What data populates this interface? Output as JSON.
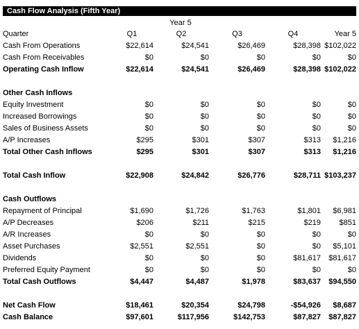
{
  "title": "Cash Flow Analysis (Fifth Year)",
  "group_header": "Year 5",
  "columns": [
    "Quarter",
    "Q1",
    "Q2",
    "Q3",
    "Q4",
    "Year 5"
  ],
  "rows": [
    {
      "label": "Cash From Operations",
      "values": [
        "$22,614",
        "$24,541",
        "$26,469",
        "$28,398",
        "$102,022"
      ],
      "bold": false
    },
    {
      "label": "Cash From Receivables",
      "values": [
        "$0",
        "$0",
        "$0",
        "$0",
        "$0"
      ],
      "bold": false
    },
    {
      "label": "Operating Cash Inflow",
      "values": [
        "$22,614",
        "$24,541",
        "$26,469",
        "$28,398",
        "$102,022"
      ],
      "bold": true
    },
    {
      "blank": true
    },
    {
      "label": "Other Cash Inflows",
      "values": [
        "",
        "",
        "",
        "",
        ""
      ],
      "bold": true
    },
    {
      "label": "Equity Investment",
      "values": [
        "$0",
        "$0",
        "$0",
        "$0",
        "$0"
      ],
      "bold": false
    },
    {
      "label": "Increased Borrowings",
      "values": [
        "$0",
        "$0",
        "$0",
        "$0",
        "$0"
      ],
      "bold": false
    },
    {
      "label": "Sales of Business Assets",
      "values": [
        "$0",
        "$0",
        "$0",
        "$0",
        "$0"
      ],
      "bold": false
    },
    {
      "label": "A/P Increases",
      "values": [
        "$295",
        "$301",
        "$307",
        "$313",
        "$1,216"
      ],
      "bold": false
    },
    {
      "label": "Total Other Cash Inflows",
      "values": [
        "$295",
        "$301",
        "$307",
        "$313",
        "$1,216"
      ],
      "bold": true
    },
    {
      "blank": true
    },
    {
      "label": "Total Cash Inflow",
      "values": [
        "$22,908",
        "$24,842",
        "$26,776",
        "$28,711",
        "$103,237"
      ],
      "bold": true
    },
    {
      "blank": true
    },
    {
      "label": "Cash Outflows",
      "values": [
        "",
        "",
        "",
        "",
        ""
      ],
      "bold": true
    },
    {
      "label": "Repayment of Principal",
      "values": [
        "$1,690",
        "$1,726",
        "$1,763",
        "$1,801",
        "$6,981"
      ],
      "bold": false
    },
    {
      "label": "A/P Decreases",
      "values": [
        "$206",
        "$211",
        "$215",
        "$219",
        "$851"
      ],
      "bold": false
    },
    {
      "label": "A/R Increases",
      "values": [
        "$0",
        "$0",
        "$0",
        "$0",
        "$0"
      ],
      "bold": false
    },
    {
      "label": "Asset Purchases",
      "values": [
        "$2,551",
        "$2,551",
        "$0",
        "$0",
        "$5,101"
      ],
      "bold": false
    },
    {
      "label": "Dividends",
      "values": [
        "$0",
        "$0",
        "$0",
        "$81,617",
        "$81,617"
      ],
      "bold": false
    },
    {
      "label": "Preferred Equity Payment",
      "values": [
        "$0",
        "$0",
        "$0",
        "$0",
        "$0"
      ],
      "bold": false
    },
    {
      "label": "Total Cash Outflows",
      "values": [
        "$4,447",
        "$4,487",
        "$1,978",
        "$83,637",
        "$94,550"
      ],
      "bold": true
    },
    {
      "blank": true
    },
    {
      "label": "Net Cash Flow",
      "values": [
        "$18,461",
        "$20,354",
        "$24,798",
        "-$54,926",
        "$8,687"
      ],
      "bold": true
    },
    {
      "label": "Cash Balance",
      "values": [
        "$97,601",
        "$117,956",
        "$142,753",
        "$87,827",
        "$87,827"
      ],
      "bold": true
    }
  ]
}
